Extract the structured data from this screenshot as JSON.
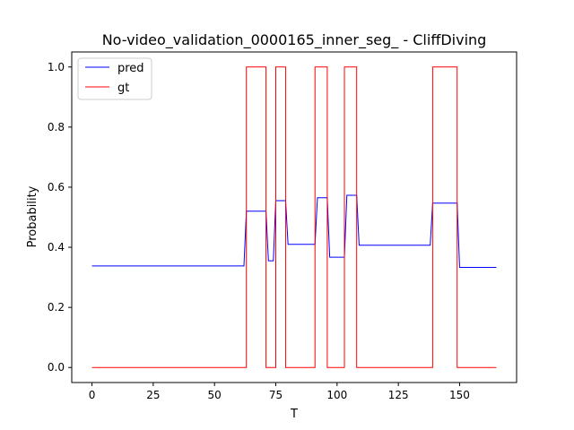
{
  "chart_data": {
    "type": "line",
    "title": "No-video_validation_0000165_inner_seg_ - CliffDiving",
    "xlabel": "T",
    "ylabel": "Probability",
    "xlim": [
      -8.25,
      173.25
    ],
    "ylim": [
      -0.05,
      1.05
    ],
    "xticks": [
      0,
      25,
      50,
      75,
      100,
      125,
      150
    ],
    "yticks": [
      0.0,
      0.2,
      0.4,
      0.6,
      0.8,
      1.0
    ],
    "xtick_labels": [
      "0",
      "25",
      "50",
      "75",
      "100",
      "125",
      "150"
    ],
    "ytick_labels": [
      "0.0",
      "0.2",
      "0.4",
      "0.6",
      "0.8",
      "1.0"
    ],
    "legend_position": "top-left",
    "grid": false,
    "series": [
      {
        "name": "pred",
        "color": "#0000ff",
        "x": [
          0,
          62,
          63,
          71,
          72,
          74,
          75,
          79,
          80,
          91,
          92,
          96,
          97,
          103,
          104,
          108,
          109,
          138,
          139,
          149,
          150,
          165
        ],
        "y": [
          0.338,
          0.338,
          0.52,
          0.52,
          0.355,
          0.355,
          0.555,
          0.555,
          0.41,
          0.41,
          0.565,
          0.565,
          0.367,
          0.367,
          0.573,
          0.573,
          0.407,
          0.407,
          0.547,
          0.547,
          0.333,
          0.333
        ]
      },
      {
        "name": "gt",
        "color": "#ff0000",
        "x": [
          0,
          63,
          63,
          71,
          71,
          75,
          75,
          79,
          79,
          91,
          91,
          96,
          96,
          103,
          103,
          108,
          108,
          139,
          139,
          149,
          149,
          165
        ],
        "y": [
          0,
          0,
          1,
          1,
          0,
          0,
          1,
          1,
          0,
          0,
          1,
          1,
          0,
          0,
          1,
          1,
          0,
          0,
          1,
          1,
          0,
          0
        ]
      }
    ]
  }
}
